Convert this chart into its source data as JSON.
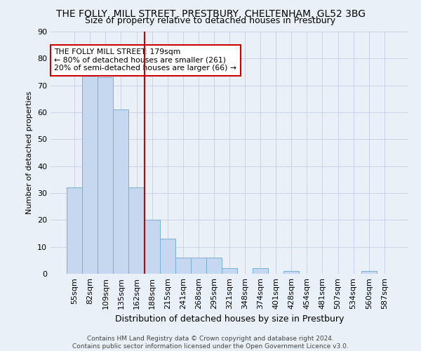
{
  "title_line1": "THE FOLLY, MILL STREET, PRESTBURY, CHELTENHAM, GL52 3BG",
  "title_line2": "Size of property relative to detached houses in Prestbury",
  "xlabel": "Distribution of detached houses by size in Prestbury",
  "ylabel": "Number of detached properties",
  "footnote": "Contains HM Land Registry data © Crown copyright and database right 2024.\nContains public sector information licensed under the Open Government Licence v3.0.",
  "categories": [
    "55sqm",
    "82sqm",
    "109sqm",
    "135sqm",
    "162sqm",
    "188sqm",
    "215sqm",
    "241sqm",
    "268sqm",
    "295sqm",
    "321sqm",
    "348sqm",
    "374sqm",
    "401sqm",
    "428sqm",
    "454sqm",
    "481sqm",
    "507sqm",
    "534sqm",
    "560sqm",
    "587sqm"
  ],
  "values": [
    32,
    75,
    73,
    61,
    32,
    20,
    13,
    6,
    6,
    6,
    2,
    0,
    2,
    0,
    1,
    0,
    0,
    0,
    0,
    1,
    0
  ],
  "bar_color": "#c5d8f0",
  "bar_edge_color": "#7bafd4",
  "grid_color": "#c8d4e8",
  "annotation_text": "THE FOLLY MILL STREET: 179sqm\n← 80% of detached houses are smaller (261)\n20% of semi-detached houses are larger (66) →",
  "annotation_box_color": "#ffffff",
  "annotation_box_edge_color": "#cc0000",
  "vline_color": "#cc0000",
  "vline_x": 5.0,
  "ylim": [
    0,
    90
  ],
  "yticks": [
    0,
    10,
    20,
    30,
    40,
    50,
    60,
    70,
    80,
    90
  ],
  "background_color": "#eaf0f8",
  "title_fontsize": 10,
  "subtitle_fontsize": 9,
  "xlabel_fontsize": 9,
  "ylabel_fontsize": 8,
  "tick_fontsize": 8,
  "footnote_fontsize": 6.5
}
